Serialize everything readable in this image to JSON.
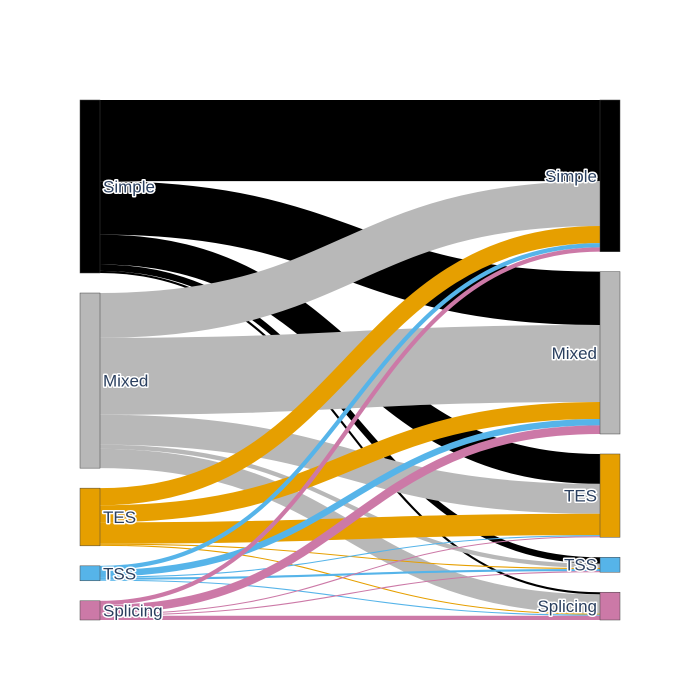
{
  "chart_data": {
    "type": "sankey",
    "colors": {
      "Simple": "#000000",
      "Mixed": "#b8b8b8",
      "TES": "#e69f00",
      "TSS": "#56b4e9",
      "Splicing": "#cc79a7"
    },
    "source_nodes": [
      {
        "id": "Simple",
        "label": "Simple"
      },
      {
        "id": "Mixed",
        "label": "Mixed"
      },
      {
        "id": "TES",
        "label": "TES"
      },
      {
        "id": "TSS",
        "label": "TSS"
      },
      {
        "id": "Splicing",
        "label": "Splicing"
      }
    ],
    "target_nodes": [
      {
        "id": "Simple",
        "label": "Simple"
      },
      {
        "id": "Mixed",
        "label": "Mixed"
      },
      {
        "id": "TES",
        "label": "TES"
      },
      {
        "id": "TSS",
        "label": "TSS"
      },
      {
        "id": "Splicing",
        "label": "Splicing"
      }
    ],
    "links": [
      {
        "source": "Simple",
        "target": "Simple",
        "value": 76
      },
      {
        "source": "Simple",
        "target": "Mixed",
        "value": 50
      },
      {
        "source": "Simple",
        "target": "TES",
        "value": 28
      },
      {
        "source": "Simple",
        "target": "TSS",
        "value": 6
      },
      {
        "source": "Simple",
        "target": "Splicing",
        "value": 2
      },
      {
        "source": "Mixed",
        "target": "Simple",
        "value": 42
      },
      {
        "source": "Mixed",
        "target": "Mixed",
        "value": 72
      },
      {
        "source": "Mixed",
        "target": "TES",
        "value": 28
      },
      {
        "source": "Mixed",
        "target": "TSS",
        "value": 4
      },
      {
        "source": "Mixed",
        "target": "Splicing",
        "value": 18
      },
      {
        "source": "TES",
        "target": "Simple",
        "value": 16
      },
      {
        "source": "TES",
        "target": "Mixed",
        "value": 16
      },
      {
        "source": "TES",
        "target": "TES",
        "value": 20
      },
      {
        "source": "TES",
        "target": "TSS",
        "value": 1
      },
      {
        "source": "TES",
        "target": "Splicing",
        "value": 1
      },
      {
        "source": "TSS",
        "target": "Simple",
        "value": 4
      },
      {
        "source": "TSS",
        "target": "Mixed",
        "value": 6
      },
      {
        "source": "TSS",
        "target": "TES",
        "value": 1
      },
      {
        "source": "TSS",
        "target": "TSS",
        "value": 2
      },
      {
        "source": "TSS",
        "target": "Splicing",
        "value": 1
      },
      {
        "source": "Splicing",
        "target": "Simple",
        "value": 4
      },
      {
        "source": "Splicing",
        "target": "Mixed",
        "value": 8
      },
      {
        "source": "Splicing",
        "target": "TES",
        "value": 1
      },
      {
        "source": "Splicing",
        "target": "TSS",
        "value": 1
      },
      {
        "source": "Splicing",
        "target": "Splicing",
        "value": 4
      }
    ]
  }
}
